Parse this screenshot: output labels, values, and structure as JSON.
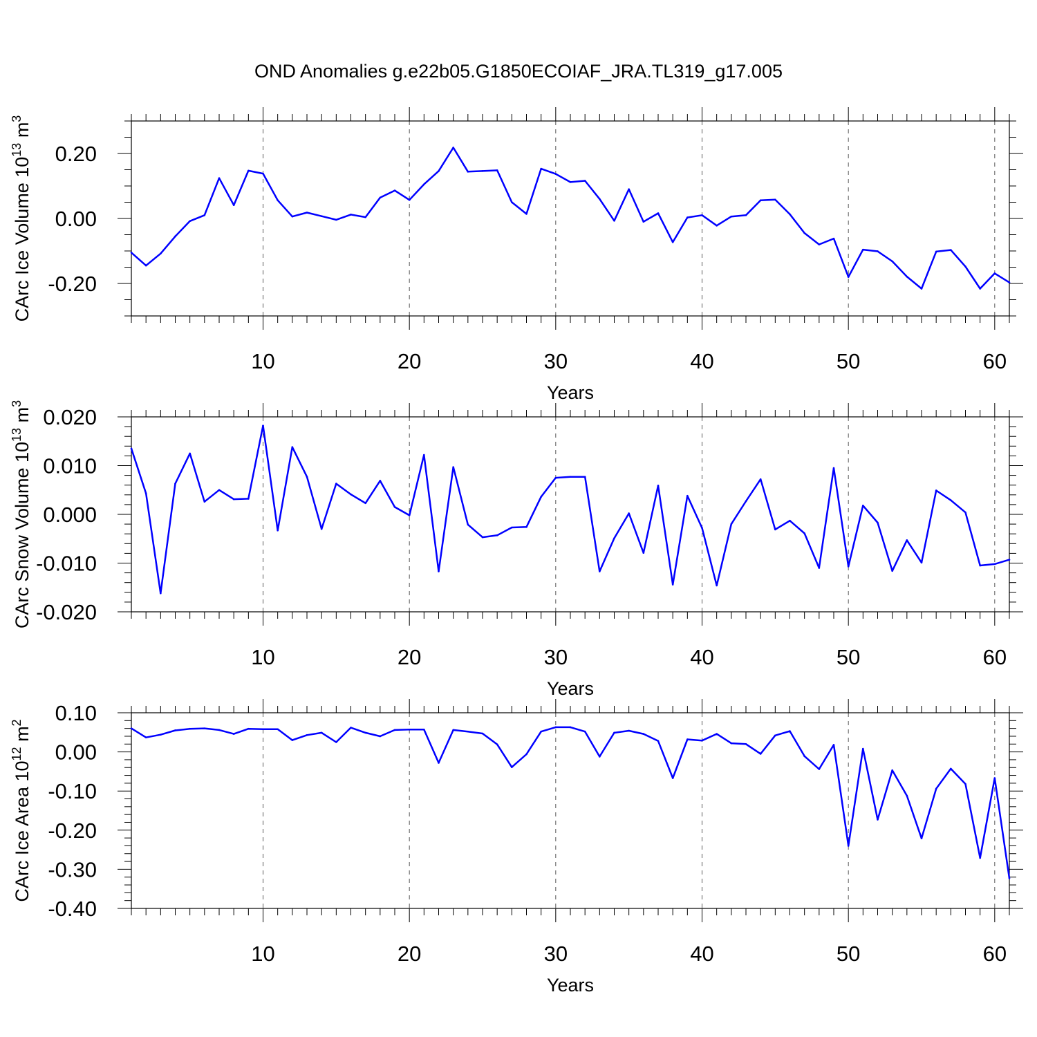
{
  "title": "OND Anomalies g.e22b05.G1850ECOIAF_JRA.TL319_g17.005",
  "line_color": "#0000ff",
  "chart_data": [
    {
      "type": "line",
      "ylabel_main": "CArc Ice Volume 10",
      "ylabel_exp": "13",
      "ylabel_unit": " m",
      "ylabel_unit_exp": "3",
      "xlabel": "Years",
      "xlim": [
        1,
        61
      ],
      "ylim": [
        -0.3,
        0.3
      ],
      "x_ticks": [
        10,
        20,
        30,
        40,
        50,
        60
      ],
      "x_tick_labels": [
        "10",
        "20",
        "30",
        "40",
        "50",
        "60"
      ],
      "y_ticks": [
        -0.2,
        0.0,
        0.2
      ],
      "y_tick_labels": [
        "-0.20",
        "0.00",
        "0.20"
      ],
      "y_minor_step": 0.05,
      "x": [
        1,
        2,
        3,
        4,
        5,
        6,
        7,
        8,
        9,
        10,
        11,
        12,
        13,
        14,
        15,
        16,
        17,
        18,
        19,
        20,
        21,
        22,
        23,
        24,
        25,
        26,
        27,
        28,
        29,
        30,
        31,
        32,
        33,
        34,
        35,
        36,
        37,
        38,
        39,
        40,
        41,
        42,
        43,
        44,
        45,
        46,
        47,
        48,
        49,
        50,
        51,
        52,
        53,
        54,
        55,
        56,
        57,
        58,
        59,
        60,
        61
      ],
      "values": [
        -0.105,
        -0.145,
        -0.108,
        -0.055,
        -0.008,
        0.01,
        0.124,
        0.041,
        0.147,
        0.138,
        0.056,
        0.006,
        0.018,
        0.007,
        -0.004,
        0.012,
        0.004,
        0.064,
        0.086,
        0.057,
        0.105,
        0.146,
        0.218,
        0.144,
        0.146,
        0.148,
        0.05,
        0.014,
        0.153,
        0.137,
        0.112,
        0.116,
        0.06,
        -0.007,
        0.09,
        -0.01,
        0.016,
        -0.073,
        0.003,
        0.01,
        -0.022,
        0.006,
        0.01,
        0.056,
        0.058,
        0.013,
        -0.045,
        -0.08,
        -0.062,
        -0.18,
        -0.096,
        -0.101,
        -0.132,
        -0.179,
        -0.216,
        -0.102,
        -0.097,
        -0.148,
        -0.216,
        -0.169,
        -0.197
      ]
    },
    {
      "type": "line",
      "ylabel_main": "CArc Snow Volume 10",
      "ylabel_exp": "13",
      "ylabel_unit": " m",
      "ylabel_unit_exp": "3",
      "xlabel": "Years",
      "xlim": [
        1,
        61
      ],
      "ylim": [
        -0.02,
        0.02
      ],
      "x_ticks": [
        10,
        20,
        30,
        40,
        50,
        60
      ],
      "x_tick_labels": [
        "10",
        "20",
        "30",
        "40",
        "50",
        "60"
      ],
      "y_ticks": [
        -0.02,
        -0.01,
        0.0,
        0.01,
        0.02
      ],
      "y_tick_labels": [
        "-0.020",
        "-0.010",
        "0.000",
        "0.010",
        "0.020"
      ],
      "y_minor_step": 0.002,
      "x": [
        1,
        2,
        3,
        4,
        5,
        6,
        7,
        8,
        9,
        10,
        11,
        12,
        13,
        14,
        15,
        16,
        17,
        18,
        19,
        20,
        21,
        22,
        23,
        24,
        25,
        26,
        27,
        28,
        29,
        30,
        31,
        32,
        33,
        34,
        35,
        36,
        37,
        38,
        39,
        40,
        41,
        42,
        43,
        44,
        45,
        46,
        47,
        48,
        49,
        50,
        51,
        52,
        53,
        54,
        55,
        56,
        57,
        58,
        59,
        60,
        61
      ],
      "values": [
        0.0135,
        0.0043,
        -0.0162,
        0.0063,
        0.0125,
        0.0026,
        0.005,
        0.0031,
        0.0032,
        0.0182,
        -0.0033,
        0.0138,
        0.0077,
        -0.003,
        0.0063,
        0.0041,
        0.0023,
        0.0069,
        0.0015,
        -0.0002,
        0.0122,
        -0.0117,
        0.0097,
        -0.0021,
        -0.0047,
        -0.0043,
        -0.0027,
        -0.0026,
        0.0036,
        0.0075,
        0.0077,
        0.0077,
        -0.0117,
        -0.0049,
        0.0002,
        -0.0079,
        0.0059,
        -0.0144,
        0.0038,
        -0.0028,
        -0.0146,
        -0.002,
        0.0027,
        0.0072,
        -0.0031,
        -0.0013,
        -0.0039,
        -0.011,
        0.0095,
        -0.0107,
        0.0018,
        -0.0017,
        -0.0116,
        -0.0053,
        -0.0099,
        0.0049,
        0.0029,
        0.0004,
        -0.0105,
        -0.0102,
        -0.0093
      ]
    },
    {
      "type": "line",
      "ylabel_main": "CArc Ice Area 10",
      "ylabel_exp": "12",
      "ylabel_unit": " m",
      "ylabel_unit_exp": "2",
      "xlabel": "Years",
      "xlim": [
        1,
        61
      ],
      "ylim": [
        -0.4,
        0.1
      ],
      "x_ticks": [
        10,
        20,
        30,
        40,
        50,
        60
      ],
      "x_tick_labels": [
        "10",
        "20",
        "30",
        "40",
        "50",
        "60"
      ],
      "y_ticks": [
        -0.4,
        -0.3,
        -0.2,
        -0.1,
        0.0,
        0.1
      ],
      "y_tick_labels": [
        "-0.40",
        "-0.30",
        "-0.20",
        "-0.10",
        "0.00",
        "0.10"
      ],
      "y_minor_step": 0.02,
      "x": [
        1,
        2,
        3,
        4,
        5,
        6,
        7,
        8,
        9,
        10,
        11,
        12,
        13,
        14,
        15,
        16,
        17,
        18,
        19,
        20,
        21,
        22,
        23,
        24,
        25,
        26,
        27,
        28,
        29,
        30,
        31,
        32,
        33,
        34,
        35,
        36,
        37,
        38,
        39,
        40,
        41,
        42,
        43,
        44,
        45,
        46,
        47,
        48,
        49,
        50,
        51,
        52,
        53,
        54,
        55,
        56,
        57,
        58,
        59,
        60,
        61
      ],
      "values": [
        0.06,
        0.037,
        0.044,
        0.055,
        0.059,
        0.06,
        0.056,
        0.046,
        0.059,
        0.058,
        0.058,
        0.03,
        0.043,
        0.049,
        0.025,
        0.062,
        0.049,
        0.04,
        0.056,
        0.057,
        0.057,
        -0.028,
        0.056,
        0.052,
        0.047,
        0.019,
        -0.039,
        -0.006,
        0.052,
        0.063,
        0.063,
        0.052,
        -0.012,
        0.049,
        0.054,
        0.046,
        0.028,
        -0.067,
        0.032,
        0.029,
        0.046,
        0.022,
        0.02,
        -0.005,
        0.042,
        0.053,
        -0.011,
        -0.044,
        0.018,
        -0.24,
        0.008,
        -0.173,
        -0.047,
        -0.112,
        -0.221,
        -0.094,
        -0.043,
        -0.082,
        -0.271,
        -0.067,
        -0.323
      ]
    }
  ]
}
